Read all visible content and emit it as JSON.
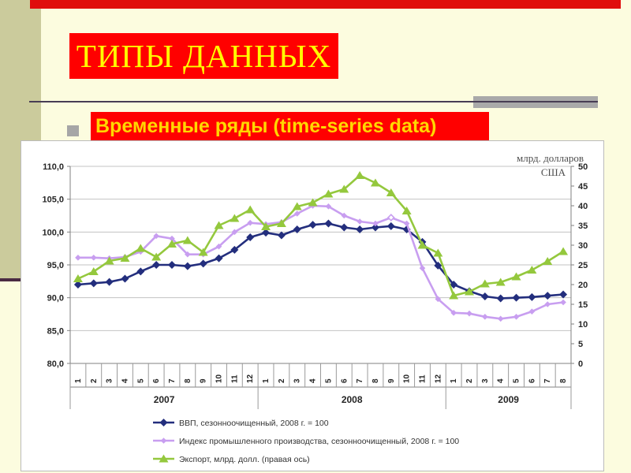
{
  "slide": {
    "title": "ТИПЫ ДАННЫХ",
    "bullet": "Временные ряды (time-series data)",
    "colors": {
      "slide_background": "#FCFCDF",
      "left_band": "#CBCB9C",
      "highlight_red": "#FF0000",
      "title_yellow": "#FFFF00",
      "bullet_yellow": "#FFD800"
    }
  },
  "chart_data": {
    "type": "line",
    "title": "",
    "right_axis_unit_lines": [
      "млрд. долларов",
      "США"
    ],
    "left_axis": {
      "ticks": [
        "110,0",
        "105,0",
        "100,0",
        "95,0",
        "90,0",
        "85,0",
        "80,0"
      ],
      "range": [
        80,
        110
      ]
    },
    "right_axis": {
      "ticks": [
        "50",
        "45",
        "40",
        "35",
        "30",
        "25",
        "20",
        "15",
        "10",
        "5",
        "0"
      ],
      "range": [
        0,
        50
      ]
    },
    "grid": "horizontal-only",
    "legend_position": "bottom-left",
    "x_month_labels": [
      "1",
      "2",
      "3",
      "4",
      "5",
      "6",
      "7",
      "8",
      "9",
      "10",
      "11",
      "12",
      "1",
      "2",
      "3",
      "4",
      "5",
      "6",
      "7",
      "8",
      "9",
      "10",
      "11",
      "12",
      "1",
      "2",
      "3",
      "4",
      "5",
      "6",
      "7",
      "8"
    ],
    "x_year_groups": [
      {
        "label": "2007",
        "months": 12
      },
      {
        "label": "2008",
        "months": 12
      },
      {
        "label": "2009",
        "months": 8
      }
    ],
    "series": [
      {
        "name": "ВВП, сезонноочищенный, 2008 г. = 100",
        "axis": "left",
        "color": "#232E7D",
        "marker": "diamond",
        "values": [
          92.0,
          92.2,
          92.4,
          92.9,
          94.0,
          95.0,
          95.0,
          94.8,
          95.2,
          96.0,
          97.3,
          99.2,
          99.9,
          99.5,
          100.4,
          101.1,
          101.3,
          100.7,
          100.4,
          100.7,
          100.9,
          100.4,
          98.5,
          94.9,
          92.0,
          91.0,
          90.2,
          89.9,
          90.0,
          90.1,
          90.3,
          90.5
        ]
      },
      {
        "name": "Индекс промышленного производства, сезонноочищенный, 2008 г. = 100",
        "axis": "left",
        "color": "#C89EF0",
        "marker": "diamond-small",
        "open_marker_index": 20,
        "values": [
          96.1,
          96.1,
          96.0,
          96.2,
          97.0,
          99.4,
          99.0,
          96.6,
          96.6,
          97.8,
          100.0,
          101.4,
          101.2,
          101.5,
          102.8,
          104.0,
          103.9,
          102.5,
          101.6,
          101.3,
          102.2,
          101.3,
          94.5,
          89.8,
          87.7,
          87.6,
          87.1,
          86.8,
          87.1,
          87.9,
          89.0,
          89.3
        ]
      },
      {
        "name": "Экспорт, млрд. долл. (правая ось)",
        "axis": "right",
        "color": "#94C83D",
        "marker": "triangle",
        "values": [
          21.5,
          23.3,
          26.0,
          26.7,
          29.2,
          27.0,
          30.3,
          31.2,
          28.2,
          35.0,
          36.8,
          39.0,
          34.7,
          35.5,
          39.8,
          40.8,
          43.0,
          44.2,
          47.7,
          45.8,
          43.3,
          38.7,
          30.0,
          28.0,
          17.2,
          18.2,
          20.2,
          20.6,
          22.0,
          23.7,
          25.9,
          28.4
        ]
      }
    ]
  }
}
